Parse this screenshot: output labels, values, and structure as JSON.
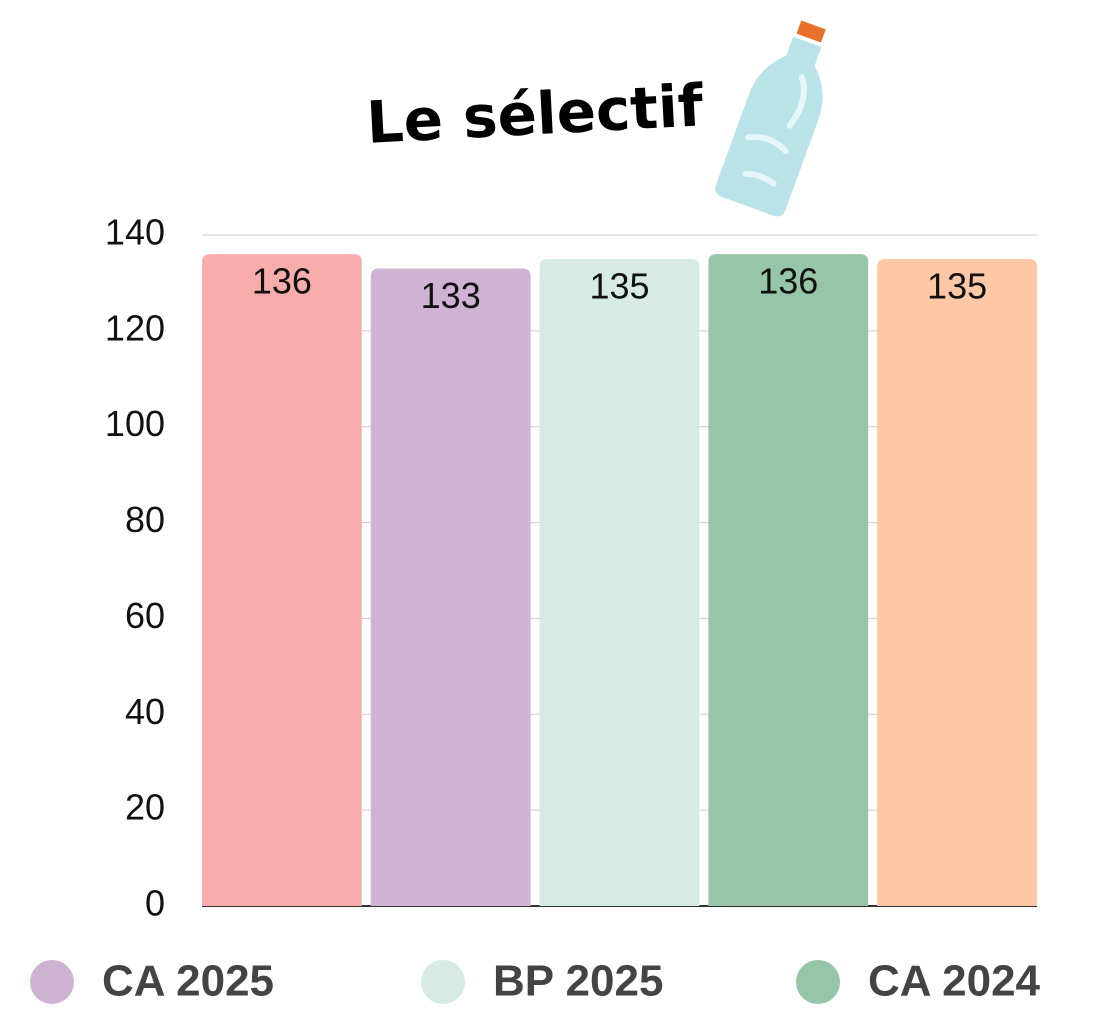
{
  "chart_data": {
    "type": "bar",
    "title": "Le sélectif",
    "categories": [
      null,
      null,
      null,
      null,
      null
    ],
    "values": [
      136,
      133,
      135,
      136,
      135
    ],
    "colors": [
      "#f8adac",
      "#ceb4d2",
      "#d5ebe4",
      "#96c6a7",
      "#fec8a6"
    ],
    "ylim": [
      0,
      140
    ],
    "yticks": [
      0,
      20,
      40,
      60,
      80,
      100,
      120,
      140
    ],
    "grid": true,
    "legend": [
      {
        "name": "CA 2025",
        "color": "#ceb4d2"
      },
      {
        "name": "BP 2025",
        "color": "#d5ebe4"
      },
      {
        "name": "CA 2024",
        "color": "#96c6a7"
      }
    ]
  }
}
